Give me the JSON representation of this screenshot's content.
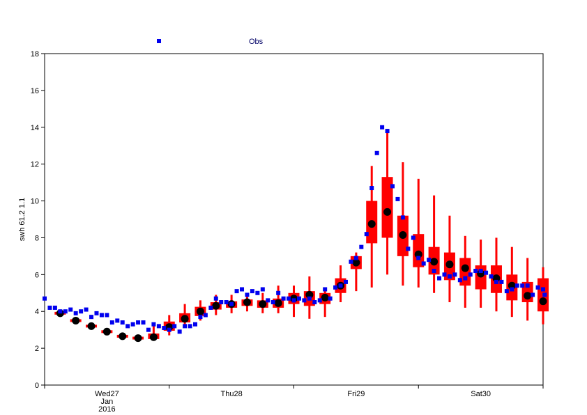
{
  "chart_data": {
    "type": "box",
    "ylabel": "swh 61.2 1.1",
    "ylim": [
      0,
      18
    ],
    "yticks": [
      0,
      2,
      4,
      6,
      8,
      10,
      12,
      14,
      16,
      18
    ],
    "x_range_hours": [
      0,
      96
    ],
    "x_ticks": [
      {
        "label": "Wed27",
        "hours": 12,
        "sublabels": [
          "Jan",
          "2016"
        ]
      },
      {
        "label": "Thu28",
        "hours": 36,
        "sublabels": []
      },
      {
        "label": "Fri29",
        "hours": 60,
        "sublabels": []
      },
      {
        "label": "Sat30",
        "hours": 84,
        "sublabels": []
      }
    ],
    "x_minor_tick_hours": [
      0,
      24,
      48,
      72,
      96
    ],
    "legend": [
      {
        "name": "Obs",
        "marker": "square",
        "color": "#0000ee"
      }
    ],
    "colors": {
      "obs": "#0000ee",
      "box": "#ff0000",
      "median": "#000000"
    },
    "observations": [
      [
        0,
        4.7
      ],
      [
        1,
        4.2
      ],
      [
        2,
        4.2
      ],
      [
        3,
        4.0
      ],
      [
        4,
        4.0
      ],
      [
        5,
        4.1
      ],
      [
        6,
        3.9
      ],
      [
        7,
        4.0
      ],
      [
        8,
        4.1
      ],
      [
        9,
        3.7
      ],
      [
        10,
        3.9
      ],
      [
        11,
        3.8
      ],
      [
        12,
        3.8
      ],
      [
        13,
        3.4
      ],
      [
        14,
        3.5
      ],
      [
        15,
        3.4
      ],
      [
        16,
        3.2
      ],
      [
        17,
        3.3
      ],
      [
        18,
        3.4
      ],
      [
        19,
        3.4
      ],
      [
        20,
        3.0
      ],
      [
        21,
        3.3
      ],
      [
        22,
        3.2
      ],
      [
        23,
        3.1
      ],
      [
        24,
        3.0
      ],
      [
        25,
        3.2
      ],
      [
        26,
        2.9
      ],
      [
        27,
        3.2
      ],
      [
        28,
        3.2
      ],
      [
        29,
        3.3
      ],
      [
        30,
        3.7
      ],
      [
        31,
        3.8
      ],
      [
        32,
        4.2
      ],
      [
        33,
        4.7
      ],
      [
        34,
        4.5
      ],
      [
        35,
        4.5
      ],
      [
        36,
        4.4
      ],
      [
        37,
        5.1
      ],
      [
        38,
        5.2
      ],
      [
        39,
        4.9
      ],
      [
        40,
        5.1
      ],
      [
        41,
        5.0
      ],
      [
        42,
        5.2
      ],
      [
        43,
        4.6
      ],
      [
        44,
        4.5
      ],
      [
        45,
        5.0
      ],
      [
        46,
        4.7
      ],
      [
        47,
        4.7
      ],
      [
        48,
        4.6
      ],
      [
        49,
        4.7
      ],
      [
        50,
        4.6
      ],
      [
        51,
        4.7
      ],
      [
        52,
        4.5
      ],
      [
        53,
        4.6
      ],
      [
        54,
        5.2
      ],
      [
        55,
        4.7
      ],
      [
        56,
        5.3
      ],
      [
        57,
        5.4
      ],
      [
        58,
        5.6
      ],
      [
        59,
        6.7
      ],
      [
        60,
        6.9
      ],
      [
        61,
        7.5
      ],
      [
        62,
        8.2
      ],
      [
        63,
        10.7
      ],
      [
        64,
        12.6
      ],
      [
        65,
        14.0
      ],
      [
        66,
        13.8
      ],
      [
        67,
        10.8
      ],
      [
        68,
        10.1
      ],
      [
        69,
        9.1
      ],
      [
        70,
        7.4
      ],
      [
        71,
        8.0
      ],
      [
        72,
        6.9
      ],
      [
        73,
        6.6
      ],
      [
        74,
        6.8
      ],
      [
        75,
        6.2
      ],
      [
        76,
        5.8
      ],
      [
        77,
        6.0
      ],
      [
        78,
        5.9
      ],
      [
        79,
        6.0
      ],
      [
        80,
        5.7
      ],
      [
        81,
        5.8
      ],
      [
        82,
        6.0
      ],
      [
        83,
        6.2
      ],
      [
        84,
        6.2
      ],
      [
        85,
        6.1
      ],
      [
        86,
        5.9
      ],
      [
        87,
        5.6
      ],
      [
        88,
        5.6
      ],
      [
        89,
        5.1
      ],
      [
        90,
        5.2
      ],
      [
        91,
        5.4
      ],
      [
        92,
        5.4
      ],
      [
        93,
        5.4
      ],
      [
        94,
        4.9
      ],
      [
        95,
        5.3
      ],
      [
        96,
        5.2
      ],
      [
        96.3,
        4.9
      ]
    ],
    "boxes": [
      {
        "h": 3,
        "min": 3.9,
        "q1": 3.9,
        "median": 3.9,
        "q3": 3.9,
        "max": 3.9
      },
      {
        "h": 6,
        "min": 3.5,
        "q1": 3.5,
        "median": 3.5,
        "q3": 3.5,
        "max": 3.5
      },
      {
        "h": 9,
        "min": 3.2,
        "q1": 3.2,
        "median": 3.2,
        "q3": 3.2,
        "max": 3.2
      },
      {
        "h": 12,
        "min": 2.9,
        "q1": 2.9,
        "median": 2.9,
        "q3": 2.9,
        "max": 2.9
      },
      {
        "h": 15,
        "min": 2.65,
        "q1": 2.65,
        "median": 2.65,
        "q3": 2.65,
        "max": 2.65
      },
      {
        "h": 18,
        "min": 2.55,
        "q1": 2.55,
        "median": 2.55,
        "q3": 2.55,
        "max": 2.55
      },
      {
        "h": 21,
        "min": 2.5,
        "q1": 2.5,
        "median": 2.6,
        "q3": 2.8,
        "max": 3.3
      },
      {
        "h": 24,
        "min": 2.7,
        "q1": 2.95,
        "median": 3.15,
        "q3": 3.45,
        "max": 3.8
      },
      {
        "h": 27,
        "min": 3.1,
        "q1": 3.4,
        "median": 3.6,
        "q3": 3.9,
        "max": 4.4
      },
      {
        "h": 30,
        "min": 3.5,
        "q1": 3.75,
        "median": 4.0,
        "q3": 4.25,
        "max": 4.6
      },
      {
        "h": 33,
        "min": 3.8,
        "q1": 4.1,
        "median": 4.3,
        "q3": 4.5,
        "max": 4.9
      },
      {
        "h": 36,
        "min": 3.9,
        "q1": 4.2,
        "median": 4.4,
        "q3": 4.55,
        "max": 4.9
      },
      {
        "h": 39,
        "min": 4.0,
        "q1": 4.3,
        "median": 4.5,
        "q3": 4.65,
        "max": 5.0
      },
      {
        "h": 42,
        "min": 3.9,
        "q1": 4.2,
        "median": 4.4,
        "q3": 4.6,
        "max": 5.0
      },
      {
        "h": 45,
        "min": 3.9,
        "q1": 4.2,
        "median": 4.45,
        "q3": 4.7,
        "max": 5.4
      },
      {
        "h": 48,
        "min": 3.7,
        "q1": 4.4,
        "median": 4.7,
        "q3": 5.0,
        "max": 5.4
      },
      {
        "h": 51,
        "min": 3.6,
        "q1": 4.3,
        "median": 4.9,
        "q3": 5.1,
        "max": 5.9
      },
      {
        "h": 54,
        "min": 3.7,
        "q1": 4.4,
        "median": 4.75,
        "q3": 5.0,
        "max": 5.2
      },
      {
        "h": 57,
        "min": 4.5,
        "q1": 5.0,
        "median": 5.4,
        "q3": 5.8,
        "max": 6.5
      },
      {
        "h": 60,
        "min": 5.1,
        "q1": 6.3,
        "median": 6.65,
        "q3": 7.0,
        "max": 7.2
      },
      {
        "h": 63,
        "min": 5.3,
        "q1": 7.7,
        "median": 8.75,
        "q3": 10.0,
        "max": 11.9
      },
      {
        "h": 66,
        "min": 6.0,
        "q1": 8.0,
        "median": 9.4,
        "q3": 11.3,
        "max": 13.9
      },
      {
        "h": 69,
        "min": 5.4,
        "q1": 7.0,
        "median": 8.15,
        "q3": 9.2,
        "max": 12.1
      },
      {
        "h": 72,
        "min": 5.3,
        "q1": 6.4,
        "median": 7.1,
        "q3": 8.2,
        "max": 11.2
      },
      {
        "h": 75,
        "min": 5.0,
        "q1": 6.0,
        "median": 6.7,
        "q3": 7.5,
        "max": 10.3
      },
      {
        "h": 78,
        "min": 4.5,
        "q1": 5.7,
        "median": 6.55,
        "q3": 7.2,
        "max": 9.2
      },
      {
        "h": 81,
        "min": 4.2,
        "q1": 5.4,
        "median": 6.35,
        "q3": 6.9,
        "max": 8.1
      },
      {
        "h": 84,
        "min": 4.2,
        "q1": 5.2,
        "median": 6.05,
        "q3": 6.5,
        "max": 7.9
      },
      {
        "h": 87,
        "min": 4.0,
        "q1": 5.0,
        "median": 5.8,
        "q3": 6.5,
        "max": 8.0
      },
      {
        "h": 90,
        "min": 3.7,
        "q1": 4.6,
        "median": 5.4,
        "q3": 6.0,
        "max": 7.5
      },
      {
        "h": 93,
        "min": 3.5,
        "q1": 4.5,
        "median": 4.85,
        "q3": 5.6,
        "max": 6.9
      },
      {
        "h": 96,
        "min": 3.3,
        "q1": 4.0,
        "median": 4.55,
        "q3": 5.8,
        "max": 6.4
      }
    ]
  }
}
